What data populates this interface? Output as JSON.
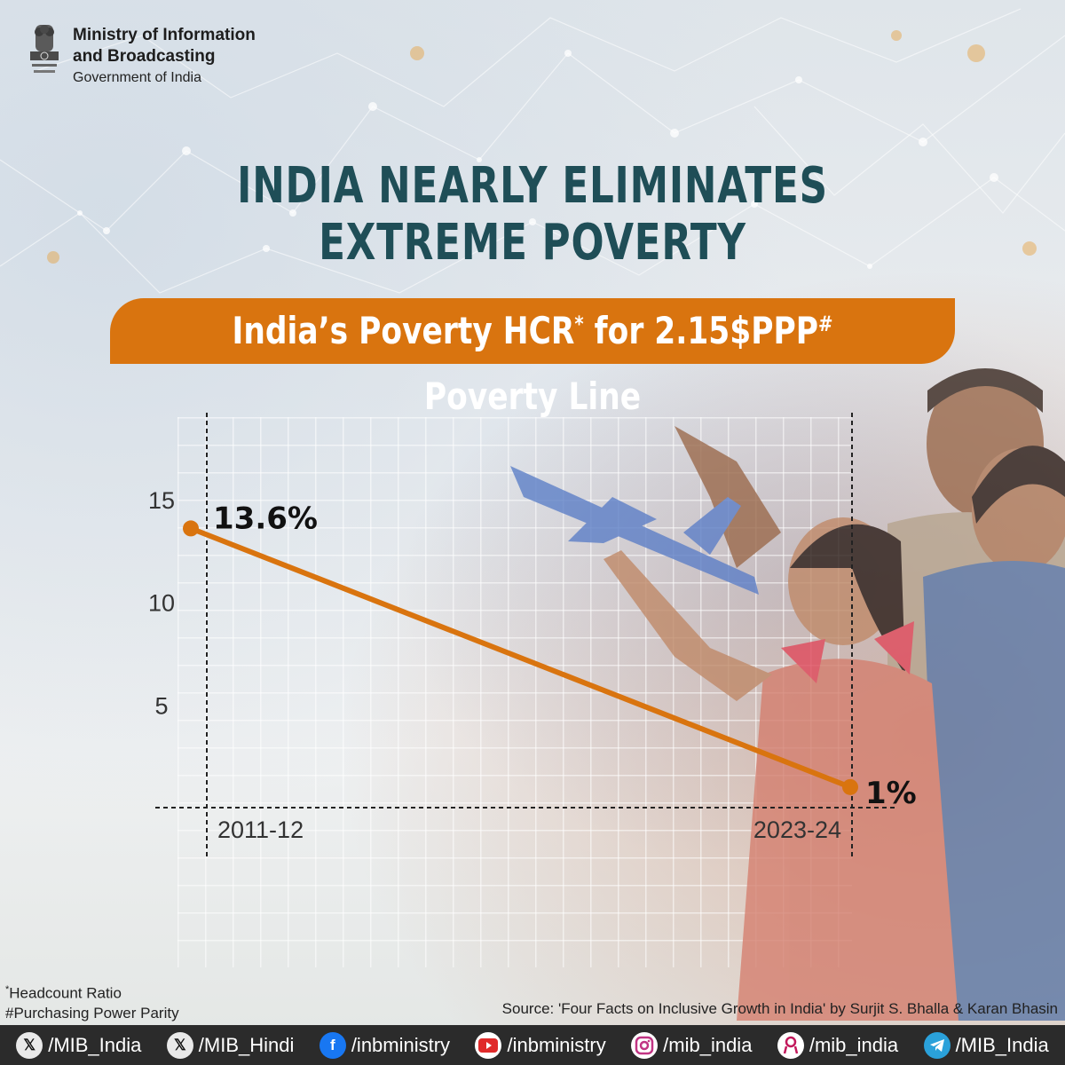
{
  "header": {
    "ministry_line1": "Ministry of Information",
    "ministry_line2": "and Broadcasting",
    "government": "Government of India",
    "emblem_icon": "national-emblem-icon"
  },
  "title": {
    "line1": "INDIA NEARLY ELIMINATES",
    "line2": "EXTREME POVERTY"
  },
  "banner": {
    "text_before": "India’s Poverty HCR",
    "sup1": "*",
    "text_middle": " for 2.15$PPP",
    "sup2": "#",
    "text_after": " Poverty Line"
  },
  "chart_data": {
    "type": "line",
    "title": "India’s Poverty HCR* for 2.15$PPP# Poverty Line",
    "categories": [
      "2011-12",
      "2023-24"
    ],
    "series": [
      {
        "values": [
          13.6,
          1
        ],
        "labels": [
          "13.6%",
          "1%"
        ]
      }
    ],
    "yticks": [
      15,
      10,
      5
    ],
    "ylim": [
      0,
      15
    ],
    "line_color": "#d9740f"
  },
  "footnotes": {
    "hcr": "Headcount Ratio",
    "hcr_mark": "*",
    "ppp": "#Purchasing Power Parity"
  },
  "source": "Source: 'Four Facts on Inclusive Growth in India' by Surjit S. Bhalla & Karan Bhasin",
  "footer": {
    "items": [
      {
        "icon": "x-icon",
        "label": "/MIB_India"
      },
      {
        "icon": "x-icon",
        "label": "/MIB_Hindi"
      },
      {
        "icon": "facebook-icon",
        "label": "/inbministry"
      },
      {
        "icon": "youtube-icon",
        "label": "/inbministry"
      },
      {
        "icon": "instagram-icon",
        "label": "/mib_india"
      },
      {
        "icon": "koo-icon",
        "label": "/mib_india"
      },
      {
        "icon": "telegram-icon",
        "label": "/MIB_India"
      }
    ]
  }
}
